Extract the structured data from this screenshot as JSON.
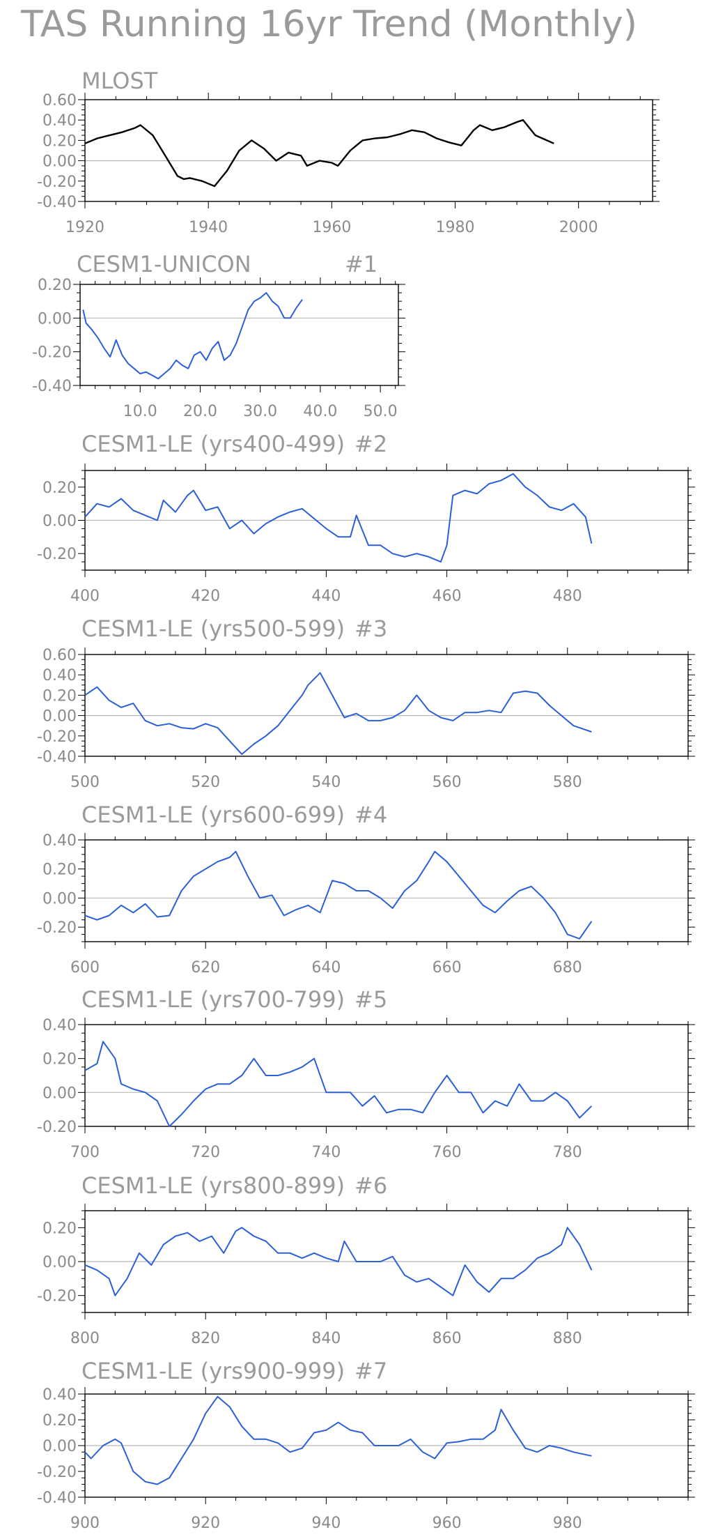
{
  "title": "TAS Running 16yr Trend (Monthly)",
  "chart_data": [
    {
      "type": "line",
      "title": "MLOST",
      "color": "#000000",
      "xlim": [
        1920,
        2012
      ],
      "ylim": [
        -0.4,
        0.6
      ],
      "xticks": [
        1920,
        1940,
        1960,
        1980,
        2000
      ],
      "xtick_labels": [
        "1920",
        "1940",
        "1960",
        "1980",
        "2000"
      ],
      "yticks": [
        -0.4,
        -0.2,
        0.0,
        0.2,
        0.4,
        0.6
      ],
      "ytick_labels": [
        "-0.40",
        "-0.20",
        "0.00",
        "0.20",
        "0.40",
        "0.60"
      ],
      "zero_line": true,
      "series": [
        {
          "x": [
            1920,
            1922,
            1924,
            1926,
            1928,
            1929,
            1931,
            1933,
            1935,
            1936,
            1937,
            1939,
            1941,
            1943,
            1945,
            1947,
            1949,
            1951,
            1953,
            1955,
            1956,
            1958,
            1960,
            1961,
            1963,
            1965,
            1967,
            1969,
            1971,
            1973,
            1975,
            1977,
            1979,
            1981,
            1983,
            1984,
            1986,
            1988,
            1990,
            1991,
            1993,
            1996
          ],
          "y": [
            0.17,
            0.22,
            0.25,
            0.28,
            0.32,
            0.35,
            0.25,
            0.05,
            -0.15,
            -0.18,
            -0.17,
            -0.2,
            -0.25,
            -0.1,
            0.1,
            0.2,
            0.12,
            0.0,
            0.08,
            0.05,
            -0.05,
            0.0,
            -0.02,
            -0.05,
            0.1,
            0.2,
            0.22,
            0.23,
            0.26,
            0.3,
            0.28,
            0.22,
            0.18,
            0.15,
            0.3,
            0.35,
            0.3,
            0.33,
            0.38,
            0.4,
            0.25,
            0.17
          ]
        }
      ]
    },
    {
      "type": "line",
      "title": "CESM1-UNICON",
      "run_label": "#1",
      "color": "#2b5fd8",
      "xlim": [
        0,
        53
      ],
      "ylim": [
        -0.4,
        0.2
      ],
      "xticks": [
        10,
        20,
        30,
        40,
        50
      ],
      "xtick_labels": [
        "10.0",
        "20.0",
        "30.0",
        "40.0",
        "50.0"
      ],
      "yticks": [
        -0.4,
        -0.2,
        0.0,
        0.2
      ],
      "ytick_labels": [
        "-0.40",
        "-0.20",
        "0.00",
        "0.20"
      ],
      "zero_line": true,
      "series": [
        {
          "x": [
            0.5,
            1,
            2,
            3,
            4,
            5,
            6,
            7,
            8,
            9,
            10,
            11,
            12,
            13,
            14,
            15,
            16,
            17,
            18,
            19,
            20,
            21,
            22,
            23,
            24,
            25,
            26,
            27,
            28,
            29,
            30,
            31,
            32,
            33,
            34,
            35,
            36,
            37
          ],
          "y": [
            0.05,
            -0.03,
            -0.07,
            -0.12,
            -0.18,
            -0.23,
            -0.13,
            -0.22,
            -0.27,
            -0.3,
            -0.33,
            -0.32,
            -0.34,
            -0.36,
            -0.33,
            -0.3,
            -0.25,
            -0.28,
            -0.3,
            -0.22,
            -0.2,
            -0.25,
            -0.18,
            -0.14,
            -0.25,
            -0.22,
            -0.15,
            -0.05,
            0.05,
            0.1,
            0.12,
            0.15,
            0.1,
            0.07,
            0.0,
            0.0,
            0.06,
            0.11
          ]
        }
      ]
    },
    {
      "type": "line",
      "title": "CESM1-LE (yrs400-499)",
      "run_label": "#2",
      "color": "#2b5fd8",
      "xlim": [
        400,
        500
      ],
      "ylim": [
        -0.3,
        0.3
      ],
      "xticks": [
        400,
        420,
        440,
        460,
        480
      ],
      "xtick_labels": [
        "400",
        "420",
        "440",
        "460",
        "480"
      ],
      "yticks": [
        -0.2,
        0.0,
        0.2
      ],
      "ytick_labels": [
        "-0.20",
        "0.00",
        "0.20"
      ],
      "zero_line": true,
      "series": [
        {
          "x": [
            400,
            402,
            404,
            406,
            408,
            410,
            412,
            413,
            415,
            417,
            418,
            420,
            422,
            424,
            426,
            428,
            430,
            432,
            434,
            436,
            438,
            440,
            442,
            444,
            445,
            447,
            449,
            451,
            453,
            455,
            457,
            459,
            460,
            461,
            463,
            465,
            467,
            469,
            471,
            473,
            475,
            477,
            479,
            481,
            483,
            484
          ],
          "y": [
            0.02,
            0.1,
            0.08,
            0.13,
            0.06,
            0.03,
            0.0,
            0.12,
            0.05,
            0.15,
            0.18,
            0.06,
            0.08,
            -0.05,
            0.0,
            -0.08,
            -0.02,
            0.02,
            0.05,
            0.07,
            0.01,
            -0.05,
            -0.1,
            -0.1,
            0.03,
            -0.15,
            -0.15,
            -0.2,
            -0.22,
            -0.2,
            -0.22,
            -0.25,
            -0.15,
            0.15,
            0.18,
            0.16,
            0.22,
            0.24,
            0.28,
            0.2,
            0.15,
            0.08,
            0.06,
            0.1,
            0.02,
            -0.14
          ]
        }
      ]
    },
    {
      "type": "line",
      "title": "CESM1-LE (yrs500-599)",
      "run_label": "#3",
      "color": "#2b5fd8",
      "xlim": [
        500,
        600
      ],
      "ylim": [
        -0.4,
        0.6
      ],
      "xticks": [
        500,
        520,
        540,
        560,
        580
      ],
      "xtick_labels": [
        "500",
        "520",
        "540",
        "560",
        "580"
      ],
      "yticks": [
        -0.4,
        -0.2,
        0.0,
        0.2,
        0.4,
        0.6
      ],
      "ytick_labels": [
        "-0.40",
        "-0.20",
        "0.00",
        "0.20",
        "0.40",
        "0.60"
      ],
      "zero_line": true,
      "series": [
        {
          "x": [
            500,
            502,
            504,
            506,
            508,
            510,
            512,
            514,
            516,
            518,
            520,
            522,
            524,
            526,
            528,
            530,
            532,
            534,
            536,
            537,
            539,
            541,
            543,
            545,
            547,
            549,
            551,
            553,
            555,
            557,
            559,
            561,
            563,
            565,
            567,
            569,
            571,
            573,
            575,
            577,
            579,
            581,
            584
          ],
          "y": [
            0.2,
            0.28,
            0.15,
            0.08,
            0.12,
            -0.05,
            -0.1,
            -0.08,
            -0.12,
            -0.13,
            -0.08,
            -0.12,
            -0.25,
            -0.38,
            -0.28,
            -0.2,
            -0.1,
            0.05,
            0.2,
            0.3,
            0.42,
            0.2,
            -0.02,
            0.02,
            -0.05,
            -0.05,
            -0.02,
            0.05,
            0.2,
            0.05,
            -0.02,
            -0.05,
            0.03,
            0.03,
            0.05,
            0.03,
            0.22,
            0.24,
            0.22,
            0.1,
            0.0,
            -0.1,
            -0.16
          ]
        }
      ]
    },
    {
      "type": "line",
      "title": "CESM1-LE (yrs600-699)",
      "run_label": "#4",
      "color": "#2b5fd8",
      "xlim": [
        600,
        700
      ],
      "ylim": [
        -0.3,
        0.4
      ],
      "xticks": [
        600,
        620,
        640,
        660,
        680
      ],
      "xtick_labels": [
        "600",
        "620",
        "640",
        "660",
        "680"
      ],
      "yticks": [
        -0.2,
        0.0,
        0.2,
        0.4
      ],
      "ytick_labels": [
        "-0.20",
        "0.00",
        "0.20",
        "0.40"
      ],
      "zero_line": true,
      "series": [
        {
          "x": [
            600,
            602,
            604,
            606,
            608,
            610,
            612,
            614,
            616,
            618,
            620,
            622,
            624,
            625,
            627,
            629,
            631,
            633,
            635,
            637,
            639,
            641,
            643,
            645,
            647,
            649,
            651,
            653,
            655,
            657,
            658,
            660,
            662,
            664,
            666,
            668,
            670,
            672,
            674,
            676,
            678,
            680,
            682,
            684
          ],
          "y": [
            -0.12,
            -0.15,
            -0.12,
            -0.05,
            -0.1,
            -0.04,
            -0.13,
            -0.12,
            0.05,
            0.15,
            0.2,
            0.25,
            0.28,
            0.32,
            0.15,
            0.0,
            0.02,
            -0.12,
            -0.08,
            -0.05,
            -0.1,
            0.12,
            0.1,
            0.05,
            0.05,
            0.0,
            -0.07,
            0.05,
            0.12,
            0.25,
            0.32,
            0.25,
            0.15,
            0.05,
            -0.05,
            -0.1,
            -0.02,
            0.05,
            0.08,
            0.0,
            -0.1,
            -0.25,
            -0.28,
            -0.16
          ]
        }
      ]
    },
    {
      "type": "line",
      "title": "CESM1-LE (yrs700-799)",
      "run_label": "#5",
      "color": "#2b5fd8",
      "xlim": [
        700,
        800
      ],
      "ylim": [
        -0.2,
        0.4
      ],
      "xticks": [
        700,
        720,
        740,
        760,
        780
      ],
      "xtick_labels": [
        "700",
        "720",
        "740",
        "760",
        "780"
      ],
      "yticks": [
        -0.2,
        0.0,
        0.2,
        0.4
      ],
      "ytick_labels": [
        "-0.20",
        "0.00",
        "0.20",
        "0.40"
      ],
      "zero_line": true,
      "series": [
        {
          "x": [
            700,
            702,
            703,
            705,
            706,
            708,
            710,
            712,
            714,
            716,
            718,
            720,
            722,
            724,
            726,
            728,
            730,
            732,
            734,
            736,
            738,
            740,
            742,
            744,
            746,
            748,
            750,
            752,
            754,
            756,
            758,
            760,
            762,
            764,
            766,
            768,
            770,
            772,
            774,
            776,
            778,
            780,
            782,
            784
          ],
          "y": [
            0.13,
            0.17,
            0.3,
            0.2,
            0.05,
            0.02,
            0.0,
            -0.05,
            -0.2,
            -0.13,
            -0.05,
            0.02,
            0.05,
            0.05,
            0.1,
            0.2,
            0.1,
            0.1,
            0.12,
            0.15,
            0.2,
            0.0,
            0.0,
            0.0,
            -0.08,
            -0.02,
            -0.12,
            -0.1,
            -0.1,
            -0.12,
            0.0,
            0.1,
            0.0,
            0.0,
            -0.12,
            -0.05,
            -0.08,
            0.05,
            -0.05,
            -0.05,
            0.0,
            -0.05,
            -0.15,
            -0.08
          ]
        }
      ]
    },
    {
      "type": "line",
      "title": "CESM1-LE (yrs800-899)",
      "run_label": "#6",
      "color": "#2b5fd8",
      "xlim": [
        800,
        900
      ],
      "ylim": [
        -0.3,
        0.3
      ],
      "xticks": [
        800,
        820,
        840,
        860,
        880
      ],
      "xtick_labels": [
        "800",
        "820",
        "840",
        "860",
        "880"
      ],
      "yticks": [
        -0.2,
        0.0,
        0.2
      ],
      "ytick_labels": [
        "-0.20",
        "0.00",
        "0.20"
      ],
      "zero_line": true,
      "series": [
        {
          "x": [
            800,
            802,
            804,
            805,
            807,
            809,
            811,
            813,
            815,
            817,
            819,
            821,
            823,
            825,
            826,
            828,
            830,
            832,
            834,
            836,
            838,
            840,
            842,
            843,
            845,
            847,
            849,
            851,
            853,
            855,
            857,
            859,
            861,
            863,
            865,
            867,
            869,
            871,
            873,
            875,
            877,
            879,
            880,
            882,
            884
          ],
          "y": [
            -0.02,
            -0.05,
            -0.1,
            -0.2,
            -0.1,
            0.05,
            -0.02,
            0.1,
            0.15,
            0.17,
            0.12,
            0.15,
            0.05,
            0.18,
            0.2,
            0.15,
            0.12,
            0.05,
            0.05,
            0.02,
            0.05,
            0.02,
            0.0,
            0.12,
            0.0,
            0.0,
            0.0,
            0.03,
            -0.08,
            -0.12,
            -0.1,
            -0.15,
            -0.2,
            -0.02,
            -0.12,
            -0.18,
            -0.1,
            -0.1,
            -0.05,
            0.02,
            0.05,
            0.1,
            0.2,
            0.1,
            -0.05
          ]
        }
      ]
    },
    {
      "type": "line",
      "title": "CESM1-LE (yrs900-999)",
      "run_label": "#7",
      "color": "#2b5fd8",
      "xlim": [
        900,
        1000
      ],
      "ylim": [
        -0.4,
        0.4
      ],
      "xticks": [
        900,
        920,
        940,
        960,
        980
      ],
      "xtick_labels": [
        "900",
        "920",
        "940",
        "960",
        "980"
      ],
      "yticks": [
        -0.4,
        -0.2,
        0.0,
        0.2,
        0.4
      ],
      "ytick_labels": [
        "-0.40",
        "-0.20",
        "0.00",
        "0.20",
        "0.40"
      ],
      "zero_line": true,
      "series": [
        {
          "x": [
            900,
            901,
            903,
            905,
            906,
            908,
            910,
            912,
            914,
            916,
            918,
            920,
            922,
            924,
            926,
            928,
            930,
            932,
            934,
            936,
            938,
            940,
            942,
            944,
            946,
            948,
            950,
            952,
            954,
            956,
            958,
            960,
            962,
            964,
            966,
            968,
            969,
            971,
            973,
            975,
            977,
            979,
            981,
            984
          ],
          "y": [
            -0.05,
            -0.1,
            0.0,
            0.05,
            0.02,
            -0.2,
            -0.28,
            -0.3,
            -0.25,
            -0.1,
            0.05,
            0.25,
            0.38,
            0.3,
            0.15,
            0.05,
            0.05,
            0.02,
            -0.05,
            -0.02,
            0.1,
            0.12,
            0.18,
            0.12,
            0.1,
            0.0,
            0.0,
            0.0,
            0.05,
            -0.05,
            -0.1,
            0.02,
            0.03,
            0.05,
            0.05,
            0.12,
            0.28,
            0.12,
            -0.02,
            -0.05,
            0.0,
            -0.02,
            -0.05,
            -0.08
          ]
        }
      ]
    }
  ]
}
